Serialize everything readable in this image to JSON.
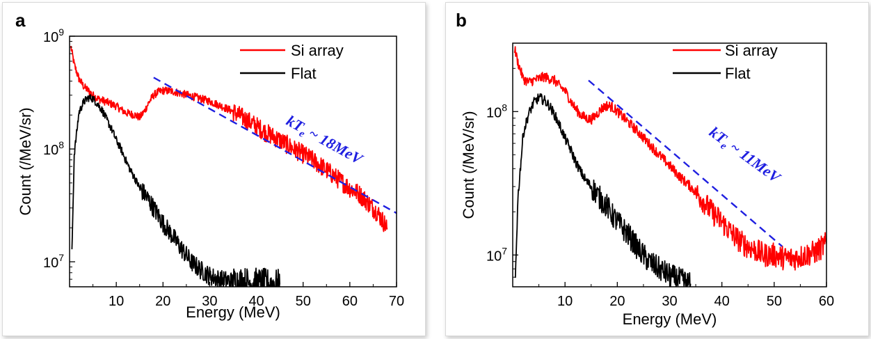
{
  "chart_data": [
    {
      "panel_label": "a",
      "type": "line",
      "xlabel": "Energy (MeV)",
      "ylabel": "Count (/MeV/sr)",
      "xlim": [
        0,
        70
      ],
      "ylim": [
        6000000,
        1000000000
      ],
      "yscale": "log",
      "x_ticks": [
        10,
        20,
        30,
        40,
        50,
        60,
        70
      ],
      "y_ticks": [
        {
          "value": 10000000,
          "base": "10",
          "exp": "7"
        },
        {
          "value": 100000000,
          "base": "10",
          "exp": "8"
        },
        {
          "value": 1000000000,
          "base": "10",
          "exp": "9"
        }
      ],
      "legend_position": "top-right",
      "series": [
        {
          "name": "Si array",
          "color": "#ff0000",
          "x": [
            0.3,
            1,
            2,
            3,
            4,
            5,
            6,
            8,
            10,
            12,
            14,
            15,
            16,
            17,
            18,
            19,
            20,
            22,
            24,
            26,
            28,
            30,
            32,
            35,
            38,
            40,
            42,
            45,
            48,
            50,
            52,
            55,
            58,
            60,
            62,
            64,
            66,
            68
          ],
          "y": [
            800000000,
            560000000,
            420000000,
            360000000,
            330000000,
            300000000,
            280000000,
            260000000,
            240000000,
            210000000,
            200000000,
            190000000,
            215000000,
            260000000,
            300000000,
            320000000,
            330000000,
            325000000,
            310000000,
            295000000,
            280000000,
            265000000,
            245000000,
            215000000,
            180000000,
            160000000,
            140000000,
            120000000,
            100000000,
            90000000,
            80000000,
            65000000,
            52000000,
            45000000,
            40000000,
            33000000,
            27000000,
            20000000
          ]
        },
        {
          "name": "Flat",
          "color": "#000000",
          "x": [
            0.5,
            1,
            2,
            3,
            4,
            5,
            6,
            7,
            8,
            9,
            10,
            11,
            12,
            13,
            14,
            15,
            16,
            17,
            18,
            20,
            22,
            24,
            26,
            28,
            30,
            32,
            35,
            40,
            45
          ],
          "y": [
            12000000,
            90000000,
            210000000,
            260000000,
            285000000,
            280000000,
            250000000,
            220000000,
            180000000,
            150000000,
            120000000,
            100000000,
            80000000,
            65000000,
            55000000,
            45000000,
            40000000,
            35000000,
            30000000,
            22000000,
            17000000,
            13000000,
            10000000,
            8500000,
            7500000,
            7000000,
            6700000,
            6500000,
            6300000
          ]
        }
      ],
      "fit_line": {
        "x": [
          18,
          70
        ],
        "y": [
          430000000,
          27000000
        ],
        "color": "#1f1fe0"
      },
      "annotation": {
        "prefix": "kT",
        "subscript": "e",
        "suffix": " ~ 18MeV",
        "color": "#1f1fe0"
      }
    },
    {
      "panel_label": "b",
      "type": "line",
      "xlabel": "Energy (MeV)",
      "ylabel": "Count (/MeV/sr)",
      "xlim": [
        0,
        60
      ],
      "ylim": [
        6000000,
        300000000
      ],
      "yscale": "log",
      "x_ticks": [
        10,
        20,
        30,
        40,
        50,
        60
      ],
      "y_ticks": [
        {
          "value": 10000000,
          "base": "10",
          "exp": "7"
        },
        {
          "value": 100000000,
          "base": "10",
          "exp": "8"
        }
      ],
      "legend_position": "top-right",
      "series": [
        {
          "name": "Si array",
          "color": "#ff0000",
          "x": [
            0.3,
            1,
            2,
            3,
            4,
            5,
            6,
            7,
            8,
            9,
            10,
            11,
            12,
            13,
            14,
            15,
            16,
            17,
            18,
            19,
            20,
            22,
            24,
            26,
            28,
            30,
            32,
            34,
            36,
            38,
            40,
            42,
            44,
            46,
            48,
            50,
            52,
            54,
            56,
            58,
            60
          ],
          "y": [
            280000000,
            220000000,
            170000000,
            160000000,
            165000000,
            170000000,
            175000000,
            170000000,
            165000000,
            150000000,
            140000000,
            120000000,
            105000000,
            95000000,
            90000000,
            88000000,
            95000000,
            105000000,
            110000000,
            108000000,
            100000000,
            85000000,
            72000000,
            60000000,
            50000000,
            42000000,
            35000000,
            30000000,
            25000000,
            20000000,
            17000000,
            14000000,
            12000000,
            11000000,
            10000000,
            10000000,
            9500000,
            9500000,
            10000000,
            10500000,
            12000000
          ]
        },
        {
          "name": "Flat",
          "color": "#000000",
          "x": [
            0.5,
            1,
            2,
            3,
            4,
            5,
            6,
            7,
            8,
            9,
            10,
            11,
            12,
            13,
            14,
            15,
            16,
            17,
            18,
            19,
            20,
            22,
            24,
            26,
            28,
            30,
            32,
            34
          ],
          "y": [
            7000000,
            25000000,
            70000000,
            95000000,
            115000000,
            125000000,
            120000000,
            110000000,
            95000000,
            80000000,
            65000000,
            55000000,
            45000000,
            38000000,
            33000000,
            30000000,
            27000000,
            24000000,
            22000000,
            19000000,
            17000000,
            14000000,
            11000000,
            9000000,
            8000000,
            7200000,
            6700000,
            6300000
          ]
        }
      ],
      "fit_line": {
        "x": [
          14.5,
          51.5
        ],
        "y": [
          165000000,
          11500000
        ],
        "color": "#1f1fe0"
      },
      "annotation": {
        "prefix": "kT",
        "subscript": "e",
        "suffix": " ~ 11MeV",
        "color": "#1f1fe0"
      }
    }
  ]
}
